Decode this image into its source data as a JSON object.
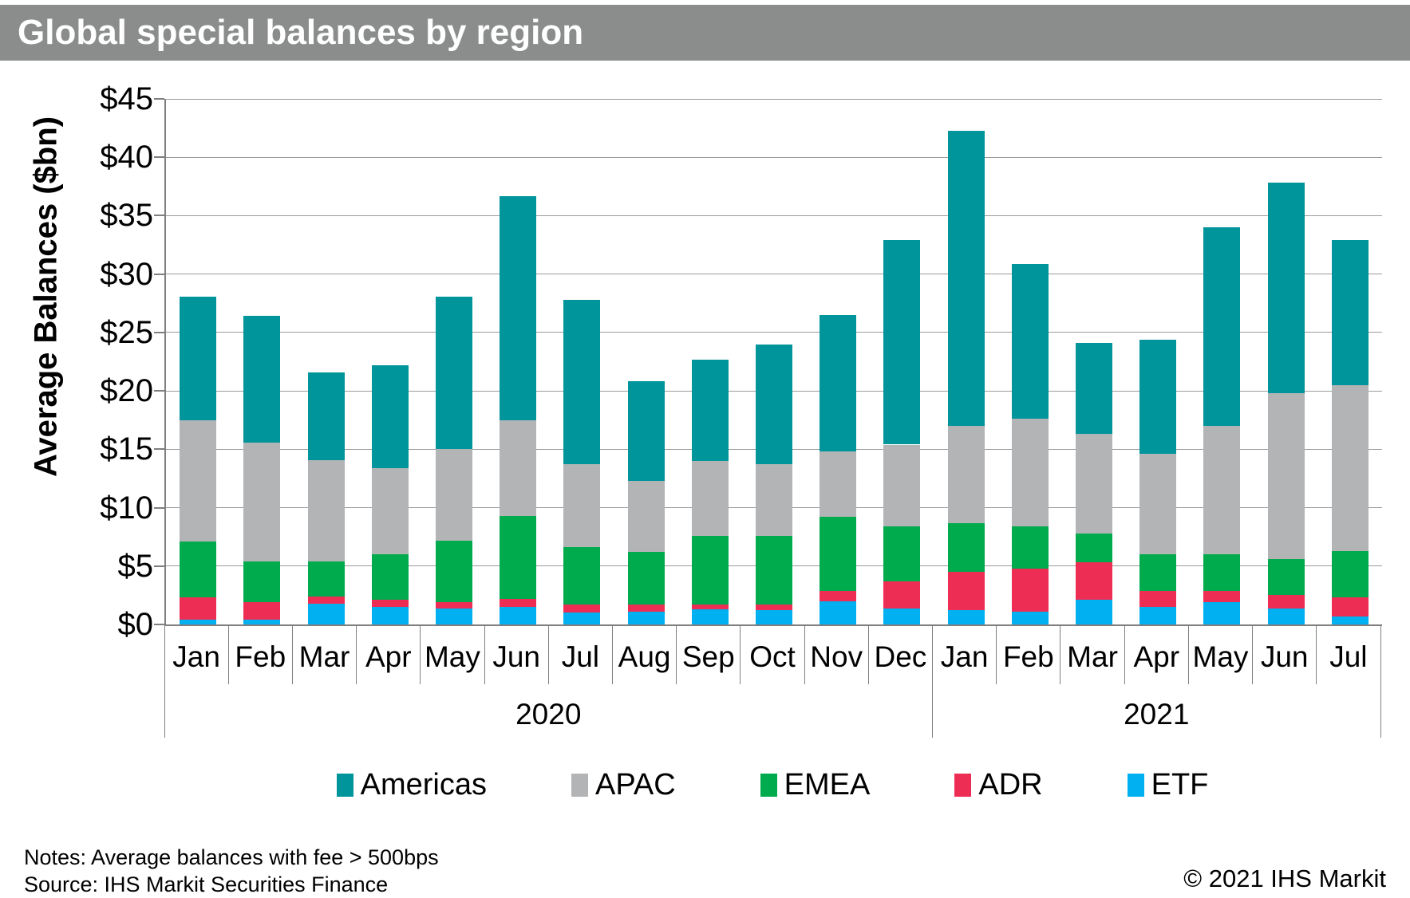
{
  "title": "Global special balances by region",
  "y_axis": {
    "label": "Average Balances ($bn)",
    "ticks": [
      "$45",
      "$40",
      "$35",
      "$30",
      "$25",
      "$20",
      "$15",
      "$10",
      "$5",
      "$0"
    ]
  },
  "footer": {
    "notes": "Notes: Average balances with fee > 500bps",
    "source": "Source: IHS Markit Securities Finance",
    "copyright": "© 2021 IHS Markit"
  },
  "chart_data": {
    "type": "bar",
    "stacked": true,
    "title": "Global special balances by region",
    "ylabel": "Average Balances ($bn)",
    "xlabel": "",
    "ylim": [
      0,
      45
    ],
    "ytick_step": 5,
    "grid": true,
    "legend_position": "bottom",
    "categories": [
      "Jan",
      "Feb",
      "Mar",
      "Apr",
      "May",
      "Jun",
      "Jul",
      "Aug",
      "Sep",
      "Oct",
      "Nov",
      "Dec",
      "Jan",
      "Feb",
      "Mar",
      "Apr",
      "May",
      "Jun",
      "Jul"
    ],
    "year_groups": [
      {
        "label": "2020",
        "months": 12
      },
      {
        "label": "2021",
        "months": 7
      }
    ],
    "series": [
      {
        "name": "Americas",
        "color": "#00949B",
        "values": [
          10.6,
          10.8,
          7.5,
          8.8,
          13.1,
          19.2,
          14.1,
          8.5,
          8.7,
          10.3,
          11.7,
          17.5,
          25.3,
          13.3,
          7.8,
          9.8,
          17.0,
          18.0,
          12.4
        ]
      },
      {
        "name": "APAC",
        "color": "#B2B4B6",
        "values": [
          10.4,
          10.2,
          8.7,
          7.4,
          7.8,
          8.2,
          7.1,
          6.1,
          6.4,
          6.1,
          5.6,
          7.0,
          8.3,
          9.2,
          8.5,
          8.6,
          11.0,
          14.2,
          14.2
        ]
      },
      {
        "name": "EMEA",
        "color": "#00AB4E",
        "values": [
          4.8,
          3.5,
          3.0,
          3.9,
          5.3,
          7.1,
          4.9,
          4.5,
          5.9,
          5.9,
          6.3,
          4.7,
          4.2,
          3.6,
          2.5,
          3.1,
          3.1,
          3.1,
          4.0
        ]
      },
      {
        "name": "ADR",
        "color": "#EE2D55",
        "values": [
          1.9,
          1.5,
          0.6,
          0.6,
          0.5,
          0.7,
          0.7,
          0.6,
          0.4,
          0.5,
          0.9,
          2.3,
          3.3,
          3.7,
          3.2,
          1.4,
          1.0,
          1.1,
          1.6
        ]
      },
      {
        "name": "ETF",
        "color": "#00B0F0",
        "values": [
          0.4,
          0.4,
          1.8,
          1.5,
          1.4,
          1.5,
          1.0,
          1.1,
          1.3,
          1.2,
          2.0,
          1.4,
          1.2,
          1.1,
          2.1,
          1.5,
          1.9,
          1.4,
          0.7
        ]
      }
    ]
  }
}
